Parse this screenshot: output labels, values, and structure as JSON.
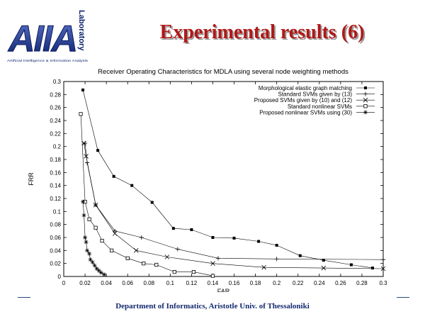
{
  "slide": {
    "title": "Experimental results (6)",
    "footer": "Department of Informatics, Aristotle Univ. of Thessaloniki"
  },
  "logo": {
    "letters": "AIIA",
    "vertical_text": "Laboratory",
    "tagline": "Artificial Intelligence & Information Analysis"
  },
  "chart_data": {
    "type": "line",
    "title": "Receiver Operating Characteristics for MDLA using several node weighting methods",
    "xlabel": "FAR",
    "ylabel": "FRR",
    "xlim": [
      0,
      0.3
    ],
    "ylim": [
      0,
      0.3
    ],
    "xticks": [
      0,
      0.02,
      0.04,
      0.06,
      0.08,
      0.1,
      0.12,
      0.14,
      0.16,
      0.18,
      0.2,
      0.22,
      0.24,
      0.26,
      0.28,
      0.3
    ],
    "yticks": [
      0,
      0.02,
      0.04,
      0.06,
      0.08,
      0.1,
      0.12,
      0.14,
      0.16,
      0.18,
      0.2,
      0.22,
      0.24,
      0.26,
      0.28,
      0.3
    ],
    "grid": false,
    "legend": "top-right",
    "series": [
      {
        "name": "Morphological elastic graph matching",
        "marker": "filled-square",
        "x": [
          0.018,
          0.032,
          0.047,
          0.064,
          0.083,
          0.103,
          0.12,
          0.14,
          0.16,
          0.183,
          0.2,
          0.222,
          0.244,
          0.27,
          0.29
        ],
        "y": [
          0.287,
          0.194,
          0.154,
          0.14,
          0.114,
          0.074,
          0.072,
          0.06,
          0.059,
          0.054,
          0.048,
          0.032,
          0.025,
          0.018,
          0.013
        ]
      },
      {
        "name": "Standard SVMs given by (13)",
        "marker": "plus",
        "x": [
          0.02,
          0.022,
          0.03,
          0.048,
          0.073,
          0.107,
          0.145,
          0.2,
          0.3
        ],
        "y": [
          0.205,
          0.175,
          0.11,
          0.07,
          0.06,
          0.042,
          0.028,
          0.027,
          0.026
        ]
      },
      {
        "name": "Proposed SVMs given by (10) and (12)",
        "marker": "cross",
        "x": [
          0.019,
          0.021,
          0.03,
          0.048,
          0.068,
          0.097,
          0.14,
          0.188,
          0.244,
          0.3
        ],
        "y": [
          0.205,
          0.185,
          0.11,
          0.066,
          0.04,
          0.03,
          0.02,
          0.014,
          0.013,
          0.012
        ]
      },
      {
        "name": "Standard nonlinear SVMs",
        "marker": "open-square",
        "x": [
          0.016,
          0.02,
          0.024,
          0.03,
          0.036,
          0.045,
          0.06,
          0.075,
          0.087,
          0.104,
          0.122,
          0.14
        ],
        "y": [
          0.25,
          0.115,
          0.088,
          0.075,
          0.055,
          0.04,
          0.028,
          0.02,
          0.018,
          0.007,
          0.007,
          0.001
        ]
      },
      {
        "name": "Proposed nonlinear SVMs using (30)",
        "marker": "star",
        "x": [
          0.018,
          0.019,
          0.02,
          0.021,
          0.022,
          0.024,
          0.025,
          0.027,
          0.029,
          0.031,
          0.033,
          0.035,
          0.038
        ],
        "y": [
          0.115,
          0.094,
          0.06,
          0.053,
          0.04,
          0.035,
          0.026,
          0.022,
          0.017,
          0.012,
          0.009,
          0.006,
          0.003
        ]
      }
    ]
  }
}
